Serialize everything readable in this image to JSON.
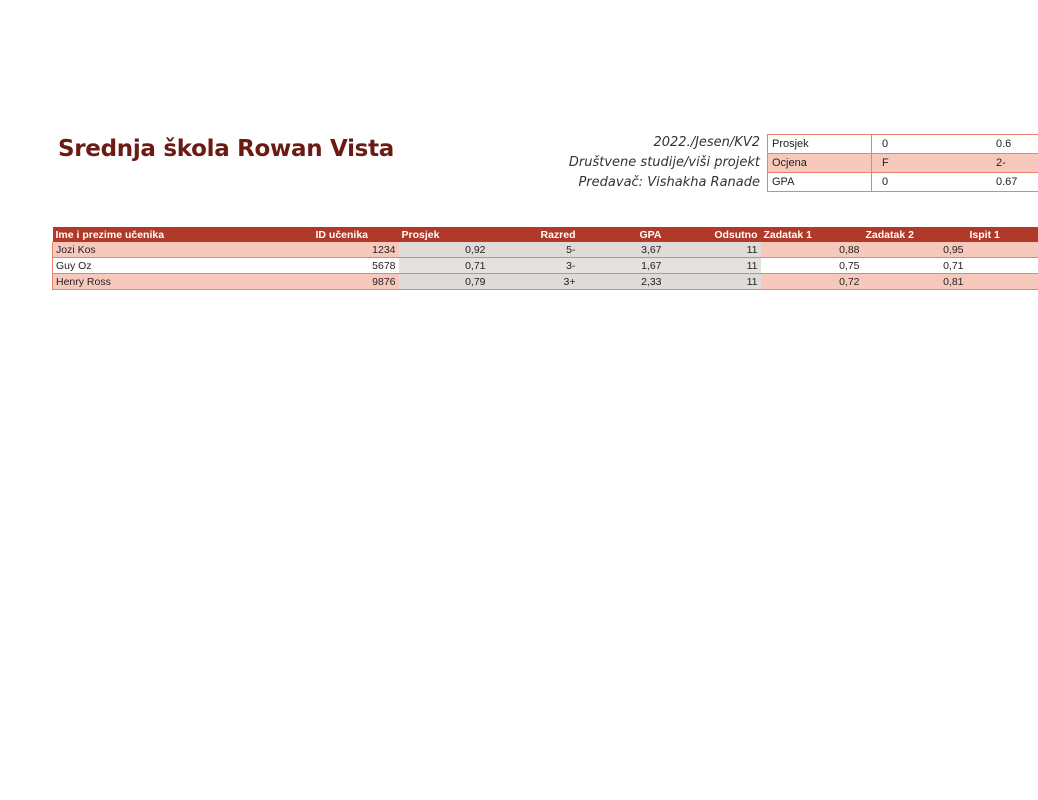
{
  "header": {
    "school_name": "Srednja škola Rowan Vista",
    "term": "2022./Jesen/KV2",
    "course": "Društvene studije/viši projekt",
    "teacher": "Predavač: Vishakha Ranade"
  },
  "summary": {
    "rows": [
      {
        "label": "Prosjek",
        "min": "0",
        "max": "0.6"
      },
      {
        "label": "Ocjena",
        "min": "F",
        "max": "2-"
      },
      {
        "label": "GPA",
        "min": "0",
        "max": "0.67"
      }
    ]
  },
  "grades": {
    "columns": [
      "Ime i prezime učenika",
      "ID učenika",
      "Prosjek",
      "Razred",
      "GPA",
      "Odsutno",
      "Zadatak 1",
      "Zadatak 2",
      "Ispit 1"
    ],
    "rows": [
      {
        "name": "Jozi Kos",
        "id": "1234",
        "avg": "0,92",
        "grade": "5-",
        "gpa": "3,67",
        "absent": "11",
        "task1": "0,88",
        "task2": "0,95",
        "exam1": ""
      },
      {
        "name": "Guy Oz",
        "id": "5678",
        "avg": "0,71",
        "grade": "3-",
        "gpa": "1,67",
        "absent": "11",
        "task1": "0,75",
        "task2": "0,71",
        "exam1": ""
      },
      {
        "name": "Henry Ross",
        "id": "9876",
        "avg": "0,79",
        "grade": "3+",
        "gpa": "2,33",
        "absent": "11",
        "task1": "0,72",
        "task2": "0,81",
        "exam1": ""
      }
    ]
  }
}
